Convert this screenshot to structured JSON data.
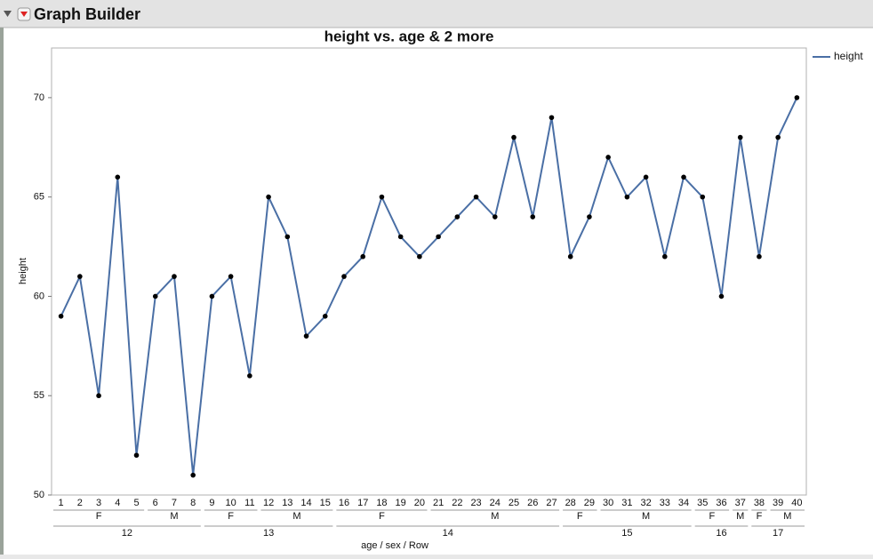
{
  "window": {
    "title": "Graph Builder"
  },
  "chart_data": {
    "type": "line",
    "title": "height vs. age & 2 more",
    "x_label": "age / sex / Row",
    "y_label": "height",
    "age_groups": [
      {
        "label": "12",
        "sex_groups": [
          {
            "label": "F",
            "categories": [
              "1",
              "2",
              "3",
              "4",
              "5"
            ]
          },
          {
            "label": "M",
            "categories": [
              "6",
              "7",
              "8"
            ]
          }
        ]
      },
      {
        "label": "13",
        "sex_groups": [
          {
            "label": "F",
            "categories": [
              "9",
              "10",
              "11"
            ]
          },
          {
            "label": "M",
            "categories": [
              "12",
              "13",
              "14",
              "15"
            ]
          }
        ]
      },
      {
        "label": "14",
        "sex_groups": [
          {
            "label": "F",
            "categories": [
              "16",
              "17",
              "18",
              "19",
              "20"
            ]
          },
          {
            "label": "M",
            "categories": [
              "21",
              "22",
              "23",
              "24",
              "25",
              "26",
              "27"
            ]
          }
        ]
      },
      {
        "label": "15",
        "sex_groups": [
          {
            "label": "F",
            "categories": [
              "28",
              "29"
            ]
          },
          {
            "label": "M",
            "categories": [
              "30",
              "31",
              "32",
              "33",
              "34"
            ]
          }
        ]
      },
      {
        "label": "16",
        "sex_groups": [
          {
            "label": "F",
            "categories": [
              "35",
              "36"
            ]
          },
          {
            "label": "M",
            "categories": [
              "37"
            ]
          }
        ]
      },
      {
        "label": "17",
        "sex_groups": [
          {
            "label": "F",
            "categories": [
              "38"
            ]
          },
          {
            "label": "M",
            "categories": [
              "39",
              "40"
            ]
          }
        ]
      }
    ],
    "series": [
      {
        "name": "height",
        "color": "#4a6fa5",
        "values": [
          59,
          61,
          55,
          66,
          52,
          60,
          61,
          51,
          60,
          61,
          56,
          65,
          63,
          58,
          59,
          61,
          62,
          65,
          63,
          62,
          63,
          64,
          65,
          64,
          68,
          64,
          69,
          62,
          64,
          67,
          65,
          66,
          62,
          66,
          65,
          60,
          68,
          62,
          68,
          70
        ]
      }
    ],
    "ylim": [
      50,
      72.5
    ],
    "yticks": [
      50,
      55,
      60,
      65,
      70
    ],
    "grid": false
  }
}
